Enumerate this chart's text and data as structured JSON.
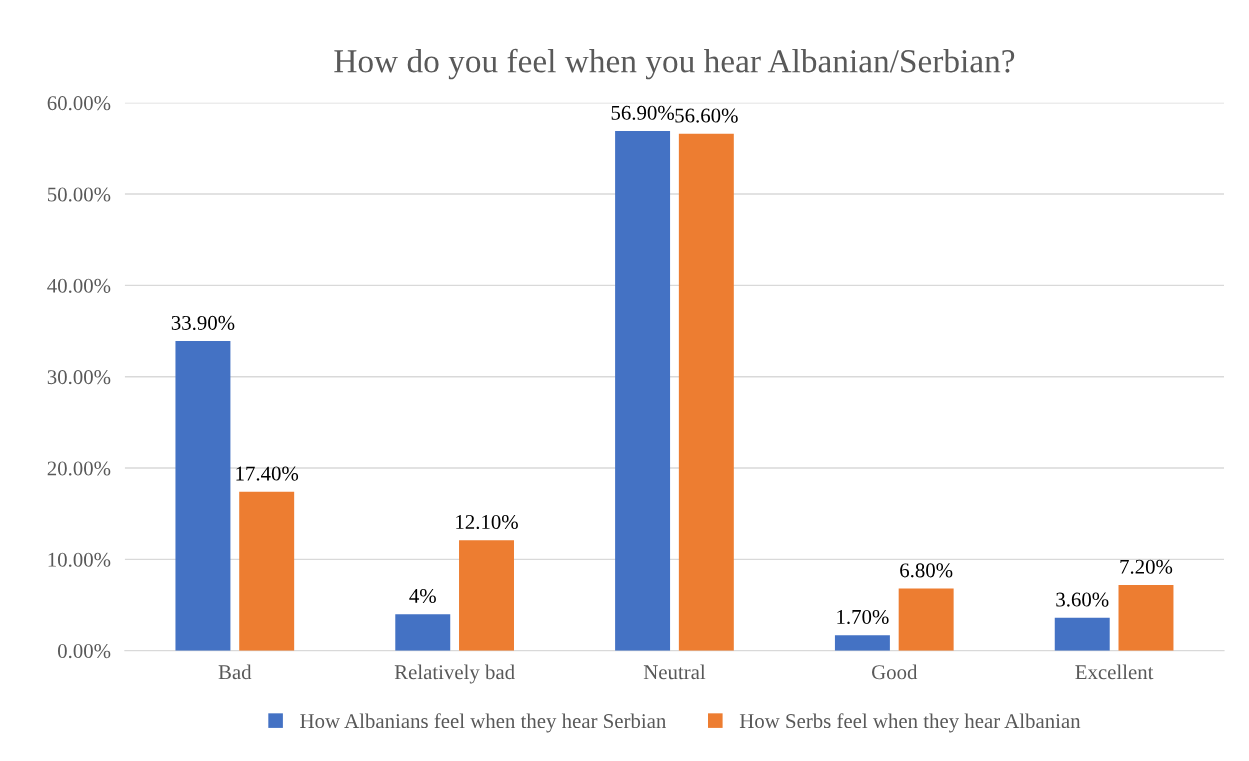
{
  "chart_data": {
    "type": "bar",
    "title": "How do you feel when you hear Albanian/Serbian?",
    "categories": [
      "Bad",
      "Relatively bad",
      "Neutral",
      "Good",
      "Excellent"
    ],
    "series": [
      {
        "name": "How Albanians feel when they hear Serbian",
        "color": "#4472c4",
        "values": [
          33.9,
          4,
          56.9,
          1.7,
          3.6
        ],
        "value_labels": [
          "33.90%",
          "4%",
          "56.90%",
          "1.70%",
          "3.60%"
        ]
      },
      {
        "name": "How Serbs feel when they hear Albanian",
        "color": "#ed7d31",
        "values": [
          17.4,
          12.1,
          56.6,
          6.8,
          7.2
        ],
        "value_labels": [
          "17.40%",
          "12.10%",
          "56.60%",
          "6.80%",
          "7.20%"
        ]
      }
    ],
    "ylim": [
      0,
      60
    ],
    "yticks": [
      {
        "value": 0,
        "label": "0.00%"
      },
      {
        "value": 10,
        "label": "10.00%"
      },
      {
        "value": 20,
        "label": "20.00%"
      },
      {
        "value": 30,
        "label": "30.00%"
      },
      {
        "value": 40,
        "label": "40.00%"
      },
      {
        "value": 50,
        "label": "50.00%"
      },
      {
        "value": 60,
        "label": "60.00%"
      }
    ],
    "grid": "y",
    "legend": "bottom"
  }
}
